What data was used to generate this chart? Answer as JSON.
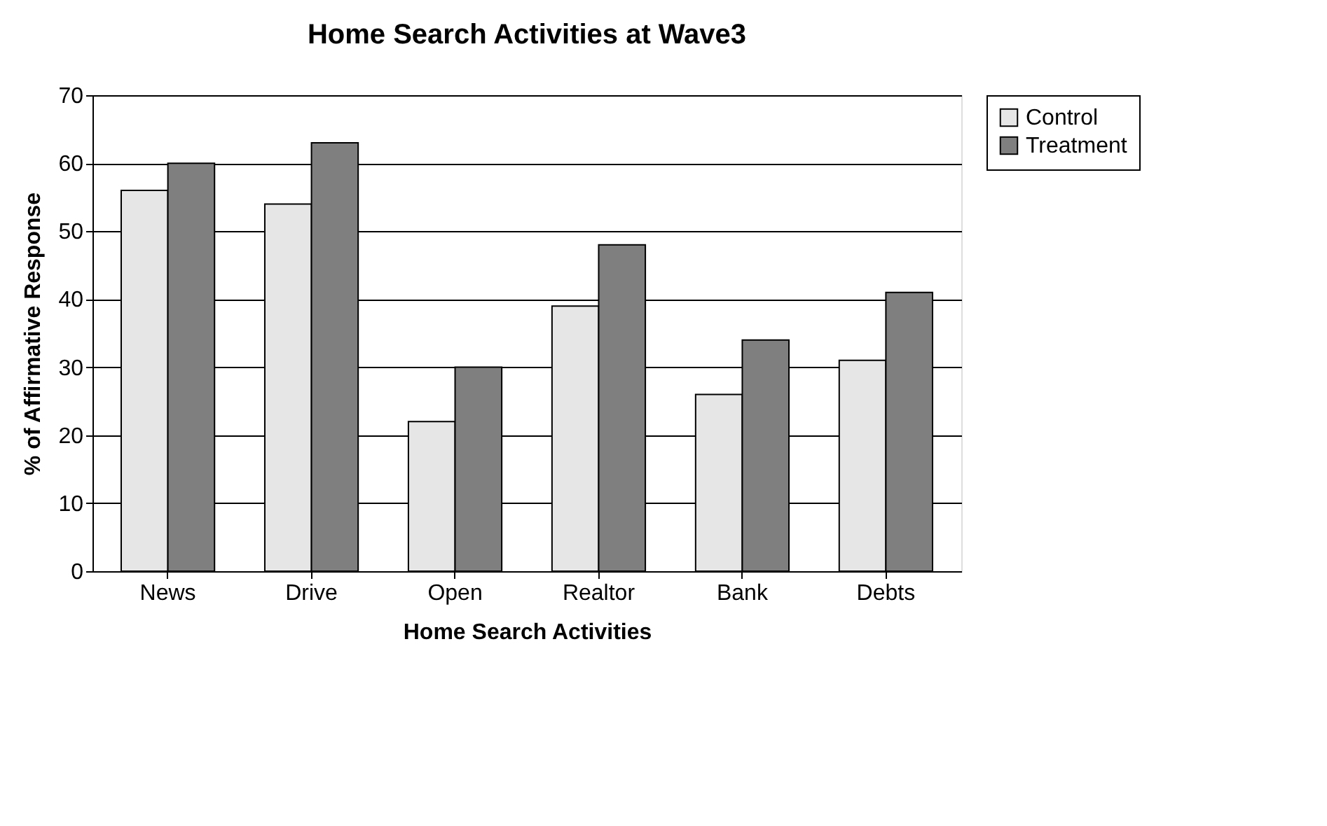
{
  "chart_data": {
    "type": "bar",
    "title": "Home Search Activities at Wave3",
    "xlabel": "Home Search Activities",
    "ylabel": "% of Affirmative Response",
    "categories": [
      "News",
      "Drive",
      "Open",
      "Realtor",
      "Bank",
      "Debts"
    ],
    "series": [
      {
        "name": "Control",
        "color": "#e6e6e6",
        "values": [
          56,
          54,
          22,
          39,
          26,
          31
        ]
      },
      {
        "name": "Treatment",
        "color": "#7f7f7f",
        "values": [
          60,
          63,
          30,
          48,
          34,
          41
        ]
      }
    ],
    "ylim": [
      0,
      70
    ],
    "yticks": [
      0,
      10,
      20,
      30,
      40,
      50,
      60,
      70
    ],
    "grid": "y",
    "legend": "right"
  }
}
